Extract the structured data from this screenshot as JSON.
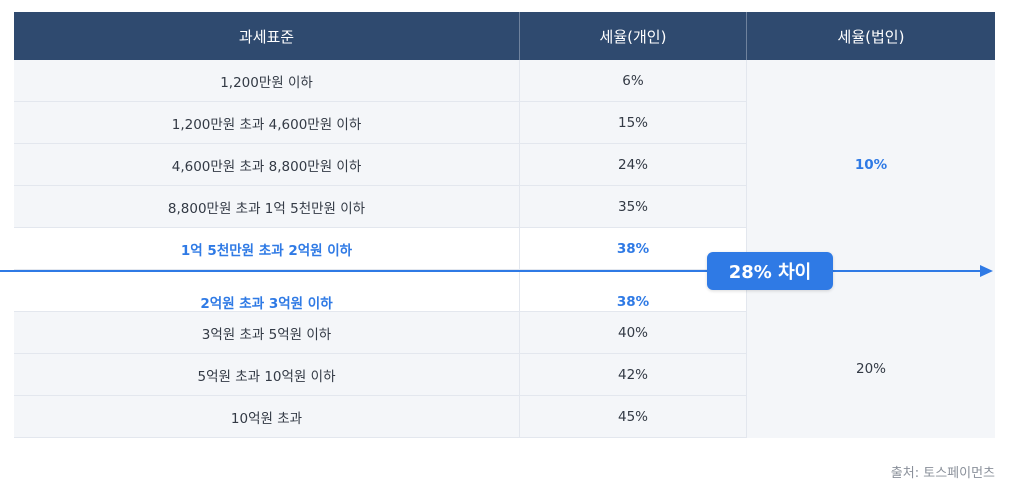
{
  "table": {
    "headers": [
      "과세표준",
      "세율(개인)",
      "세율(법인)"
    ],
    "rows": [
      {
        "bracket": "1,200만원 이하",
        "rate": "6%"
      },
      {
        "bracket": "1,200만원 초과 4,600만원 이하",
        "rate": "15%"
      },
      {
        "bracket": "4,600만원 초과 8,800만원 이하",
        "rate": "24%"
      },
      {
        "bracket": "8,800만원 초과 1억 5천만원 이하",
        "rate": "35%"
      },
      {
        "bracket": "1억 5천만원 초과 2억원 이하",
        "rate": "38%"
      },
      {
        "bracket": "2억원 초과 3억원 이하",
        "rate": "38%"
      },
      {
        "bracket": "3억원 초과 5억원 이하",
        "rate": "40%"
      },
      {
        "bracket": "5억원 초과 10억원 이하",
        "rate": "42%"
      },
      {
        "bracket": "10억원 초과",
        "rate": "45%"
      }
    ],
    "corporate": {
      "upper": "10%",
      "lower": "20%"
    }
  },
  "callout": {
    "label": "28% 차이"
  },
  "source": "출처: 토스페이먼츠",
  "colors": {
    "header": "#2f4a6f",
    "accent": "#2f7ae5",
    "row_alt": "#f4f6f9"
  }
}
